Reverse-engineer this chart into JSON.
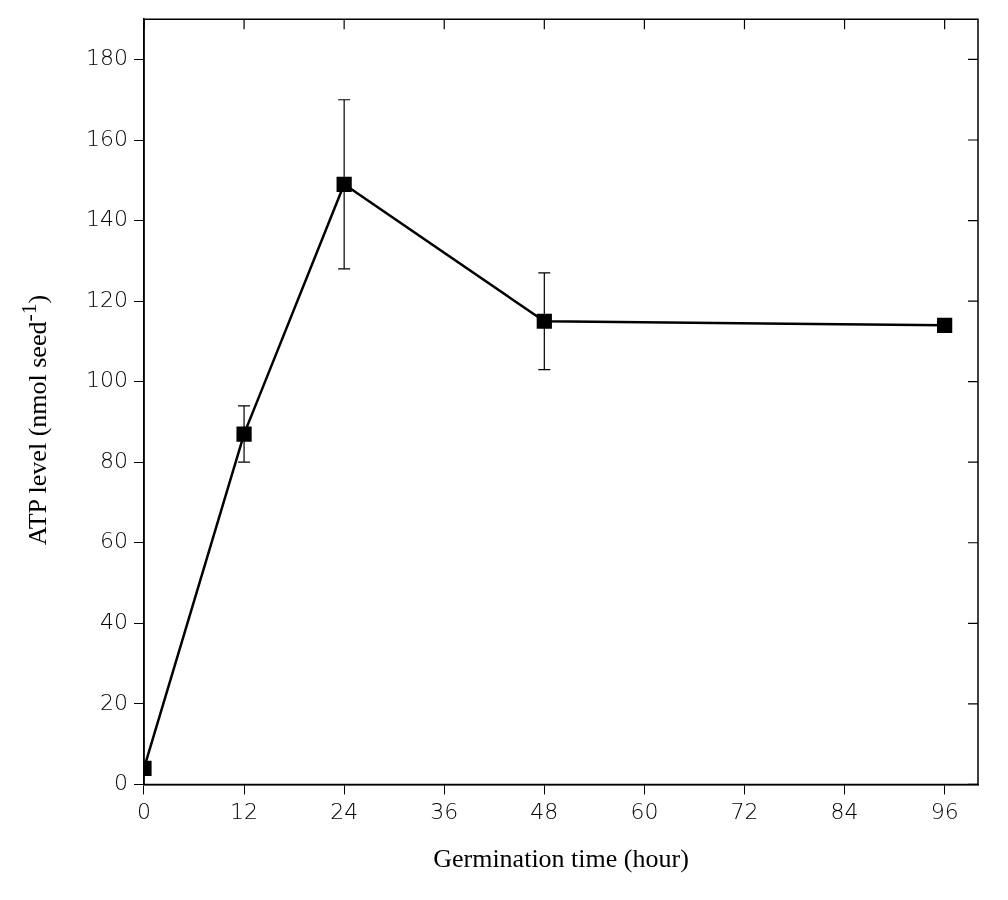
{
  "chart_data": {
    "type": "line",
    "xlabel": "Germination time (hour)",
    "ylabel": "ATP level (nmol seed$^{-1}$)",
    "x": [
      0,
      12,
      24,
      48,
      96
    ],
    "series": [
      {
        "color": "#000000",
        "values": [
          4,
          87,
          149,
          115,
          114
        ],
        "errors": [
          null,
          7,
          21,
          12,
          null
        ]
      }
    ],
    "xlim": [
      0,
      100
    ],
    "xticks": [
      0,
      12,
      24,
      36,
      48,
      60,
      72,
      84,
      96
    ],
    "ylim": [
      0,
      190
    ],
    "yticks": [
      0,
      20,
      40,
      60,
      80,
      100,
      120,
      140,
      160,
      180
    ],
    "grid": false,
    "legend": false,
    "marker": "square",
    "line_style": "solid"
  }
}
